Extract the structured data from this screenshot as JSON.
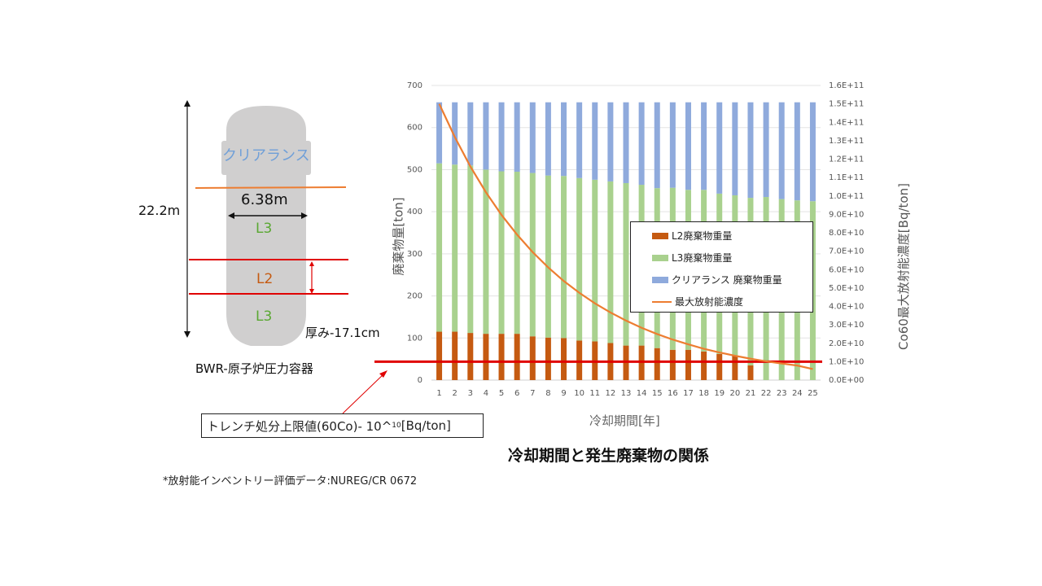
{
  "vessel": {
    "clearance_label": "クリアランス",
    "width_label": "6.38m",
    "height_label": "22.2m",
    "l3_top_label": "L3",
    "l2_label": "L2",
    "l3_bottom_label": "L3",
    "thickness_label": "厚み-17.1cm",
    "name_label": "BWR-原子炉圧力容器",
    "colors": {
      "body": "#d0cfcf",
      "l3": "#5aa833",
      "l2": "#c55a11",
      "clearance": "#6f9fd8",
      "red_line": "#e00000",
      "orange_line": "#ed7d31"
    }
  },
  "limit": {
    "label_prefix": "トレンチ処分上限値(60Co)- 10^",
    "label_exp": "10",
    "label_suffix": "[Bq/ton]"
  },
  "source_note": "*放射能インベントリー評価データ:NUREG/CR 0672",
  "chart_data": {
    "type": "bar",
    "title": "冷却期間と発生廃棄物の関係",
    "xlabel": "冷却期間[年]",
    "ylabel": "廃棄物量[ton]",
    "y2label": "Co60最大放射能濃度[Bq/ton]",
    "categories": [
      "1",
      "2",
      "3",
      "4",
      "5",
      "6",
      "7",
      "8",
      "9",
      "10",
      "11",
      "12",
      "13",
      "14",
      "15",
      "16",
      "17",
      "18",
      "19",
      "20",
      "21",
      "22",
      "23",
      "24",
      "25"
    ],
    "ylim": [
      0,
      700
    ],
    "y_ticks": [
      "0",
      "100",
      "200",
      "300",
      "400",
      "500",
      "600",
      "700"
    ],
    "y2lim": [
      0,
      160000000000.0
    ],
    "y2_ticks": [
      "0.0E+00",
      "1.0E+10",
      "2.0E+10",
      "3.0E+10",
      "4.0E+10",
      "5.0E+10",
      "6.0E+10",
      "7.0E+10",
      "8.0E+10",
      "9.0E+10",
      "1.0E+11",
      "1.1E+11",
      "1.2E+11",
      "1.3E+11",
      "1.4E+11",
      "1.5E+11",
      "1.6E+11"
    ],
    "stacked": true,
    "series": [
      {
        "name": "L2廃棄物重量",
        "color": "#c55a11",
        "values": [
          115,
          115,
          112,
          110,
          110,
          110,
          104,
          101,
          100,
          94,
          92,
          88,
          82,
          82,
          76,
          72,
          72,
          68,
          62,
          58,
          35,
          0,
          0,
          0,
          0
        ]
      },
      {
        "name": "L3廃棄物重量",
        "color": "#a9d18e",
        "values": [
          400,
          397,
          398,
          390,
          386,
          385,
          388,
          385,
          385,
          386,
          384,
          384,
          386,
          382,
          380,
          385,
          380,
          384,
          381,
          381,
          398,
          435,
          430,
          427,
          425
        ]
      },
      {
        "name": "クリアランス 廃棄物重量",
        "color": "#8faadc",
        "values": [
          145,
          148,
          150,
          160,
          164,
          165,
          168,
          174,
          175,
          180,
          184,
          188,
          192,
          196,
          204,
          203,
          208,
          208,
          217,
          221,
          227,
          225,
          230,
          233,
          235
        ]
      }
    ],
    "line_series": {
      "name": "最大放射能濃度",
      "color": "#ed7d31",
      "axis": "right",
      "values": [
        150000000000.0,
        132000000000.0,
        116000000000.0,
        102000000000.0,
        89700000000.0,
        79000000000.0,
        69500000000.0,
        61200000000.0,
        53800000000.0,
        47400000000.0,
        41700000000.0,
        36700000000.0,
        32300000000.0,
        28400000000.0,
        25000000000.0,
        22000000000.0,
        19400000000.0,
        17000000000.0,
        15000000000.0,
        13200000000.0,
        11600000000.0,
        10200000000.0,
        9000000000.0,
        7900000000.0,
        6000000000.0
      ]
    },
    "threshold": {
      "value": 10000000000.0,
      "axis": "right",
      "color": "#e00000"
    },
    "legend": "inside-right"
  }
}
